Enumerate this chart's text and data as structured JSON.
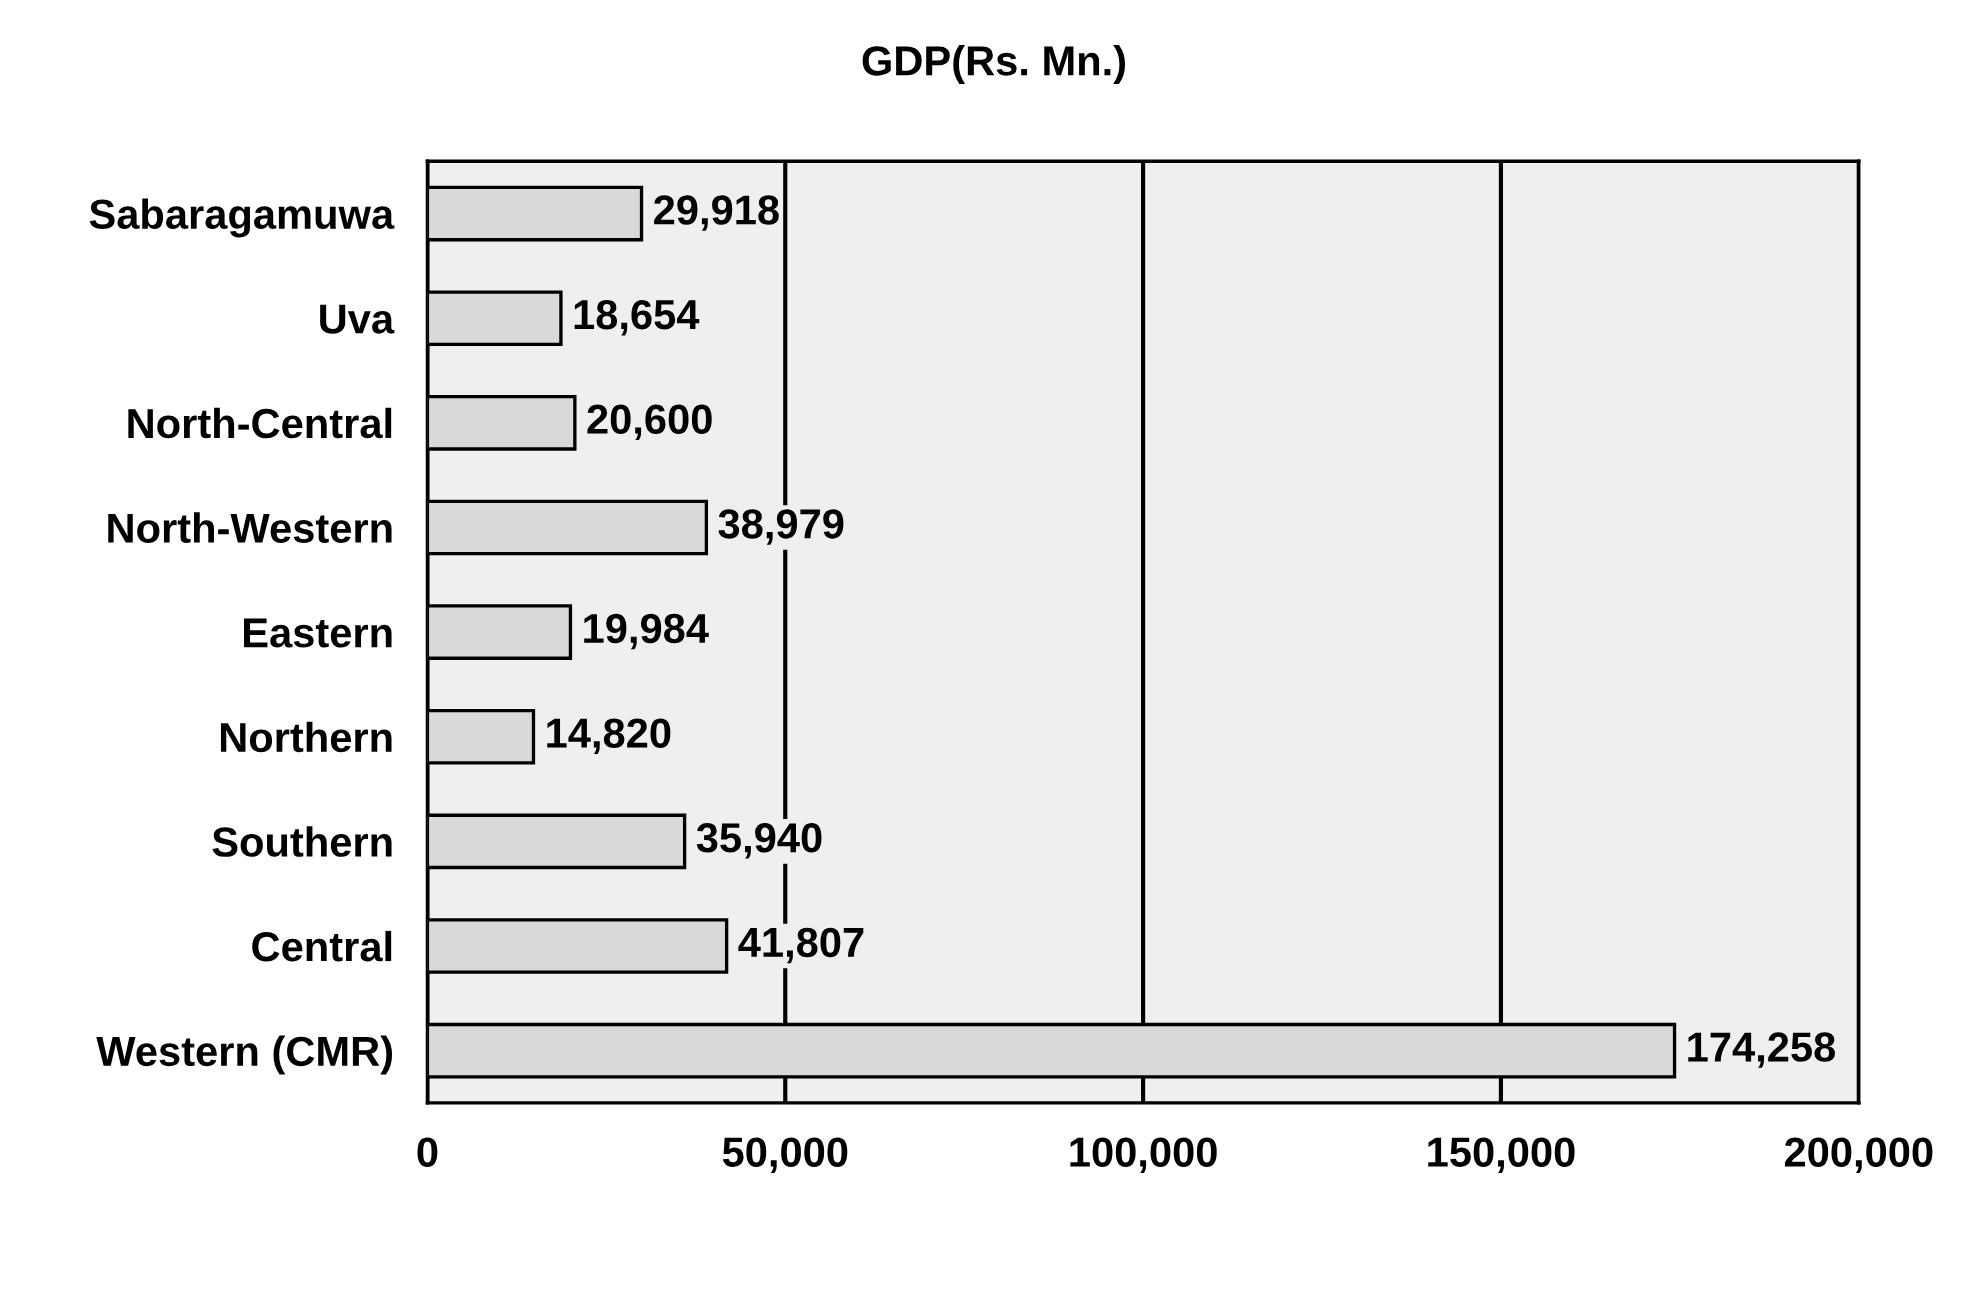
{
  "chart_data": {
    "type": "bar",
    "orientation": "horizontal",
    "title": "GDP(Rs. Mn.)",
    "categories": [
      "Sabaragamuwa",
      "Uva",
      "North-Central",
      "North-Western",
      "Eastern",
      "Northern",
      "Southern",
      "Central",
      "Western (CMR)"
    ],
    "values": [
      29918,
      18654,
      20600,
      38979,
      19984,
      14820,
      35940,
      41807,
      174258
    ],
    "color": "#d9d9d9",
    "xlim": [
      0,
      200000
    ],
    "xticks": [
      {
        "value": 0,
        "label": "0"
      },
      {
        "value": 50000,
        "label": "50,000"
      },
      {
        "value": 100000,
        "label": "100,000"
      },
      {
        "value": 150000,
        "label": "150,000"
      },
      {
        "value": 200000,
        "label": "200,000"
      }
    ],
    "value_labels": [
      "29,918",
      "18,654",
      "20,600",
      "38,979",
      "19,984",
      "14,820",
      "35,940",
      "41,807",
      "174,258"
    ],
    "grid": "x"
  }
}
